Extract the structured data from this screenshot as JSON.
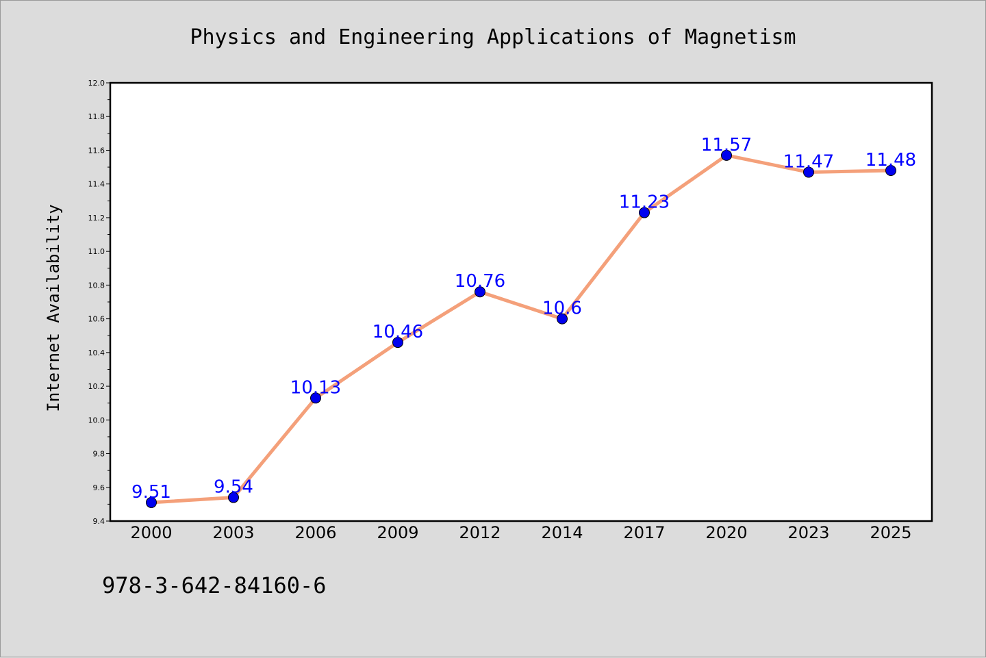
{
  "chart_data": {
    "type": "line",
    "title": "Physics and Engineering Applications of Magnetism",
    "xlabel": "",
    "ylabel": "Internet Availability",
    "categories": [
      "2000",
      "2003",
      "2006",
      "2009",
      "2012",
      "2014",
      "2017",
      "2020",
      "2023",
      "2025"
    ],
    "series": [
      {
        "values": [
          9.51,
          9.54,
          10.13,
          10.46,
          10.76,
          10.6,
          11.23,
          11.57,
          11.47,
          11.48
        ],
        "data_labels": [
          "9.51",
          "9.54",
          "10.13",
          "10.46",
          "10.76",
          "10.6",
          "11.23",
          "11.57",
          "11.47",
          "11.48"
        ]
      }
    ],
    "ylim": [
      9.4,
      12.0
    ],
    "yticks": [
      "9.4",
      "9.6",
      "9.8",
      "10.0",
      "10.2",
      "10.4",
      "10.6",
      "10.8",
      "11.0",
      "11.2",
      "11.4",
      "11.6",
      "11.8",
      "12.0"
    ],
    "grid": false,
    "legend": "none",
    "colors": {
      "line": "#f4a07a",
      "marker": "#0000ee",
      "label": "#0000ff",
      "plot_background": "#ffffff",
      "page_background": "#dcdcdc"
    }
  },
  "footer": {
    "isbn": "978-3-642-84160-6"
  }
}
